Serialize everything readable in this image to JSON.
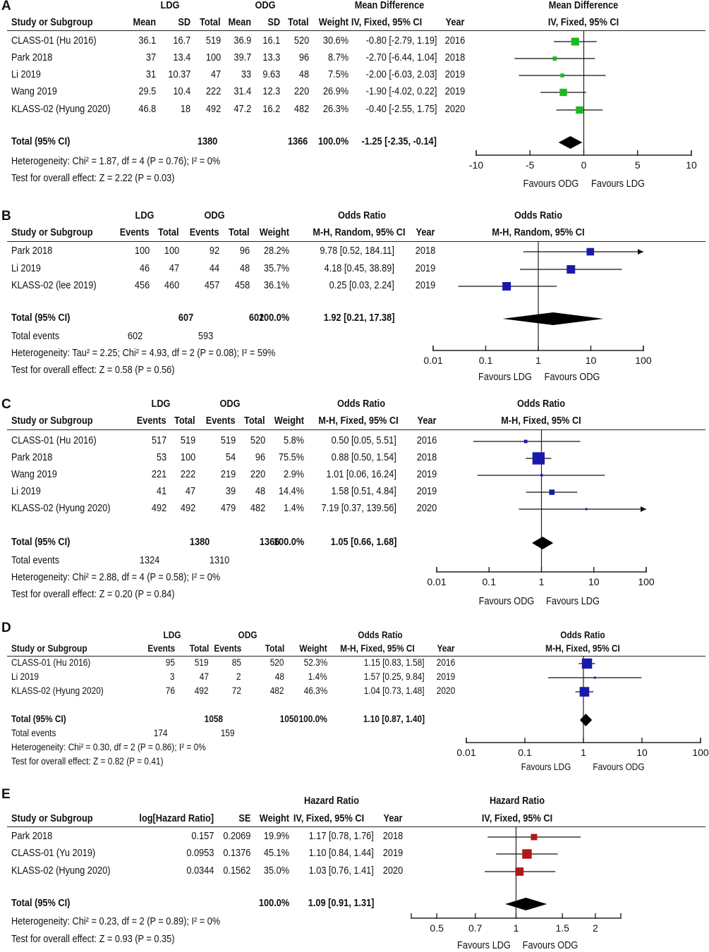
{
  "chart_data": [
    {
      "type": "forest",
      "panel": "A",
      "measure": "Mean Difference",
      "method": "IV, Fixed, 95% CI",
      "scale": "linear",
      "headers": {
        "group1": "LDG",
        "group2": "ODG",
        "study": "Study or Subgroup",
        "mean": "Mean",
        "sd": "SD",
        "total": "Total",
        "weight": "Weight",
        "year": "Year"
      },
      "studies": [
        {
          "name": "CLASS-01 (Hu 2016)",
          "m1": "36.1",
          "sd1": "16.7",
          "n1": "519",
          "m2": "36.9",
          "sd2": "16.1",
          "n2": "520",
          "weight": "30.6%",
          "ci_text": "-0.80 [-2.79, 1.19]",
          "year": "2016",
          "est": -0.8,
          "lo": -2.79,
          "hi": 1.19,
          "w": 30.6
        },
        {
          "name": "Park 2018",
          "m1": "37",
          "sd1": "13.4",
          "n1": "100",
          "m2": "39.7",
          "sd2": "13.3",
          "n2": "96",
          "weight": "8.7%",
          "ci_text": "-2.70 [-6.44, 1.04]",
          "year": "2018",
          "est": -2.7,
          "lo": -6.44,
          "hi": 1.04,
          "w": 8.7
        },
        {
          "name": "Li 2019",
          "m1": "31",
          "sd1": "10.37",
          "n1": "47",
          "m2": "33",
          "sd2": "9.63",
          "n2": "48",
          "weight": "7.5%",
          "ci_text": "-2.00 [-6.03, 2.03]",
          "year": "2019",
          "est": -2.0,
          "lo": -6.03,
          "hi": 2.03,
          "w": 7.5
        },
        {
          "name": "Wang 2019",
          "m1": "29.5",
          "sd1": "10.4",
          "n1": "222",
          "m2": "31.4",
          "sd2": "12.3",
          "n2": "220",
          "weight": "26.9%",
          "ci_text": "-1.90 [-4.02, 0.22]",
          "year": "2019",
          "est": -1.9,
          "lo": -4.02,
          "hi": 0.22,
          "w": 26.9
        },
        {
          "name": "KLASS-02 (Hyung 2020)",
          "m1": "46.8",
          "sd1": "18",
          "n1": "492",
          "m2": "47.2",
          "sd2": "16.2",
          "n2": "482",
          "weight": "26.3%",
          "ci_text": "-0.40 [-2.55, 1.75]",
          "year": "2020",
          "est": -0.4,
          "lo": -2.55,
          "hi": 1.75,
          "w": 26.3
        }
      ],
      "total": {
        "label": "Total (95% CI)",
        "n1": "1380",
        "n2": "1366",
        "weight": "100.0%",
        "ci_text": "-1.25 [-2.35, -0.14]",
        "est": -1.25,
        "lo": -2.35,
        "hi": -0.14
      },
      "heterogeneity": "Heterogeneity: Chi² = 1.87, df = 4 (P = 0.76); I² = 0%",
      "overall": "Test for overall effect: Z = 2.22 (P = 0.03)",
      "axis_ticks": [
        -10,
        -5,
        0,
        5,
        10
      ],
      "tick_labels": [
        "-10",
        "-5",
        "0",
        "5",
        "10"
      ],
      "favours_left": "Favours ODG",
      "favours_right": "Favours LDG",
      "marker_color": "#1fb81f"
    },
    {
      "type": "forest",
      "panel": "B",
      "measure": "Odds Ratio",
      "method": "M-H, Random, 95% CI",
      "scale": "log",
      "headers": {
        "group1": "LDG",
        "group2": "ODG",
        "study": "Study or Subgroup",
        "events": "Events",
        "total": "Total",
        "weight": "Weight",
        "year": "Year"
      },
      "studies": [
        {
          "name": "Park 2018",
          "e1": "100",
          "n1": "100",
          "e2": "92",
          "n2": "96",
          "weight": "28.2%",
          "ci_text": "9.78 [0.52, 184.11]",
          "year": "2018",
          "est": 9.78,
          "lo": 0.52,
          "hi": 184.11,
          "w": 28.2
        },
        {
          "name": "Li 2019",
          "e1": "46",
          "n1": "47",
          "e2": "44",
          "n2": "48",
          "weight": "35.7%",
          "ci_text": "4.18 [0.45, 38.89]",
          "year": "2019",
          "est": 4.18,
          "lo": 0.45,
          "hi": 38.89,
          "w": 35.7
        },
        {
          "name": "KLASS-02 (lee 2019)",
          "e1": "456",
          "n1": "460",
          "e2": "457",
          "n2": "458",
          "weight": "36.1%",
          "ci_text": "0.25 [0.03, 2.24]",
          "year": "2019",
          "est": 0.25,
          "lo": 0.03,
          "hi": 2.24,
          "w": 36.1
        }
      ],
      "total": {
        "label": "Total (95% CI)",
        "n1": "607",
        "n2": "602",
        "weight": "100.0%",
        "ci_text": "1.92 [0.21, 17.38]",
        "est": 1.92,
        "lo": 0.21,
        "hi": 17.38
      },
      "total_events": {
        "label": "Total events",
        "e1": "602",
        "e2": "593"
      },
      "heterogeneity": "Heterogeneity: Tau² = 2.25; Chi² = 4.93, df = 2 (P = 0.08); I² = 59%",
      "overall": "Test for overall effect: Z = 0.58 (P = 0.56)",
      "axis_ticks": [
        0.01,
        0.1,
        1,
        10,
        100
      ],
      "tick_labels": [
        "0.01",
        "0.1",
        "1",
        "10",
        "100"
      ],
      "favours_left": "Favours LDG",
      "favours_right": "Favours ODG",
      "marker_color": "#1a1aa8"
    },
    {
      "type": "forest",
      "panel": "C",
      "measure": "Odds Ratio",
      "method": "M-H, Fixed, 95% CI",
      "scale": "log",
      "headers": {
        "group1": "LDG",
        "group2": "ODG",
        "study": "Study or Subgroup",
        "events": "Events",
        "total": "Total",
        "weight": "Weight",
        "year": "Year"
      },
      "studies": [
        {
          "name": "CLASS-01 (Hu 2016)",
          "e1": "517",
          "n1": "519",
          "e2": "519",
          "n2": "520",
          "weight": "5.8%",
          "ci_text": "0.50 [0.05, 5.51]",
          "year": "2016",
          "est": 0.5,
          "lo": 0.05,
          "hi": 5.51,
          "w": 5.8
        },
        {
          "name": "Park 2018",
          "e1": "53",
          "n1": "100",
          "e2": "54",
          "n2": "96",
          "weight": "75.5%",
          "ci_text": "0.88 [0.50, 1.54]",
          "year": "2018",
          "est": 0.88,
          "lo": 0.5,
          "hi": 1.54,
          "w": 75.5
        },
        {
          "name": "Wang 2019",
          "e1": "221",
          "n1": "222",
          "e2": "219",
          "n2": "220",
          "weight": "2.9%",
          "ci_text": "1.01 [0.06, 16.24]",
          "year": "2019",
          "est": 1.01,
          "lo": 0.06,
          "hi": 16.24,
          "w": 2.9
        },
        {
          "name": "Li 2019",
          "e1": "41",
          "n1": "47",
          "e2": "39",
          "n2": "48",
          "weight": "14.4%",
          "ci_text": "1.58 [0.51, 4.84]",
          "year": "2019",
          "est": 1.58,
          "lo": 0.51,
          "hi": 4.84,
          "w": 14.4
        },
        {
          "name": "KLASS-02 (Hyung 2020)",
          "e1": "492",
          "n1": "492",
          "e2": "479",
          "n2": "482",
          "weight": "1.4%",
          "ci_text": "7.19 [0.37, 139.56]",
          "year": "2020",
          "est": 7.19,
          "lo": 0.37,
          "hi": 139.56,
          "w": 1.4
        }
      ],
      "total": {
        "label": "Total (95% CI)",
        "n1": "1380",
        "n2": "1366",
        "weight": "100.0%",
        "ci_text": "1.05 [0.66, 1.68]",
        "est": 1.05,
        "lo": 0.66,
        "hi": 1.68
      },
      "total_events": {
        "label": "Total events",
        "e1": "1324",
        "e2": "1310"
      },
      "heterogeneity": "Heterogeneity: Chi² = 2.88, df = 4 (P = 0.58); I² = 0%",
      "overall": "Test for overall effect: Z = 0.20 (P = 0.84)",
      "axis_ticks": [
        0.01,
        0.1,
        1,
        10,
        100
      ],
      "tick_labels": [
        "0.01",
        "0.1",
        "1",
        "10",
        "100"
      ],
      "favours_left": "Favours ODG",
      "favours_right": "Favours LDG",
      "marker_color": "#1a1aa8"
    },
    {
      "type": "forest",
      "panel": "D",
      "measure": "Odds Ratio",
      "method": "M-H, Fixed, 95% CI",
      "scale": "log",
      "headers": {
        "group1": "LDG",
        "group2": "ODG",
        "study": "Study or Subgroup",
        "events": "Events",
        "total": "Total",
        "weight": "Weight",
        "year": "Year"
      },
      "studies": [
        {
          "name": "CLASS-01 (Hu 2016)",
          "e1": "95",
          "n1": "519",
          "e2": "85",
          "n2": "520",
          "weight": "52.3%",
          "ci_text": "1.15 [0.83, 1.58]",
          "year": "2016",
          "est": 1.15,
          "lo": 0.83,
          "hi": 1.58,
          "w": 52.3
        },
        {
          "name": "Li 2019",
          "e1": "3",
          "n1": "47",
          "e2": "2",
          "n2": "48",
          "weight": "1.4%",
          "ci_text": "1.57 [0.25, 9.84]",
          "year": "2019",
          "est": 1.57,
          "lo": 0.25,
          "hi": 9.84,
          "w": 1.4
        },
        {
          "name": "KLASS-02 (Hyung 2020)",
          "e1": "76",
          "n1": "492",
          "e2": "72",
          "n2": "482",
          "weight": "46.3%",
          "ci_text": "1.04 [0.73, 1.48]",
          "year": "2020",
          "est": 1.04,
          "lo": 0.73,
          "hi": 1.48,
          "w": 46.3
        }
      ],
      "total": {
        "label": "Total (95% CI)",
        "n1": "1058",
        "n2": "1050",
        "weight": "100.0%",
        "ci_text": "1.10 [0.87, 1.40]",
        "est": 1.1,
        "lo": 0.87,
        "hi": 1.4
      },
      "total_events": {
        "label": "Total events",
        "e1": "174",
        "e2": "159"
      },
      "heterogeneity": "Heterogeneity: Chi² = 0.30, df = 2 (P = 0.86); I² = 0%",
      "overall": "Test for overall effect: Z = 0.82 (P = 0.41)",
      "axis_ticks": [
        0.01,
        0.1,
        1,
        10,
        100
      ],
      "tick_labels": [
        "0.01",
        "0.1",
        "1",
        "10",
        "100"
      ],
      "favours_left": "Favours LDG",
      "favours_right": "Favours ODG",
      "marker_color": "#1a1aa8"
    },
    {
      "type": "forest",
      "panel": "E",
      "measure": "Hazard Ratio",
      "method": "IV, Fixed, 95% CI",
      "scale": "log",
      "headers": {
        "study": "Study or Subgroup",
        "loghr": "log[Hazard Ratio]",
        "se": "SE",
        "weight": "Weight",
        "year": "Year"
      },
      "studies": [
        {
          "name": "Park 2018",
          "loghr": "0.157",
          "se": "0.2069",
          "weight": "19.9%",
          "ci_text": "1.17 [0.78, 1.76]",
          "year": "2018",
          "est": 1.17,
          "lo": 0.78,
          "hi": 1.76,
          "w": 19.9
        },
        {
          "name": "CLASS-01 (Yu 2019)",
          "loghr": "0.0953",
          "se": "0.1376",
          "weight": "45.1%",
          "ci_text": "1.10 [0.84, 1.44]",
          "year": "2019",
          "est": 1.1,
          "lo": 0.84,
          "hi": 1.44,
          "w": 45.1
        },
        {
          "name": "KLASS-02 (Hyung 2020)",
          "loghr": "0.0344",
          "se": "0.1562",
          "weight": "35.0%",
          "ci_text": "1.03 [0.76, 1.41]",
          "year": "2020",
          "est": 1.03,
          "lo": 0.76,
          "hi": 1.41,
          "w": 35.0
        }
      ],
      "total": {
        "label": "Total (95% CI)",
        "weight": "100.0%",
        "ci_text": "1.09 [0.91, 1.31]",
        "est": 1.09,
        "lo": 0.91,
        "hi": 1.31
      },
      "heterogeneity": "Heterogeneity: Chi² = 0.23, df = 2 (P = 0.89); I² = 0%",
      "overall": "Test for overall effect: Z = 0.93 (P = 0.35)",
      "axis_ticks": [
        0.5,
        0.7,
        1,
        1.5,
        2
      ],
      "tick_labels": [
        "0.5",
        "0.7",
        "1",
        "1.5",
        "2"
      ],
      "favours_left": "Favours LDG",
      "favours_right": "Favours ODG",
      "marker_color": "#b01818"
    }
  ]
}
